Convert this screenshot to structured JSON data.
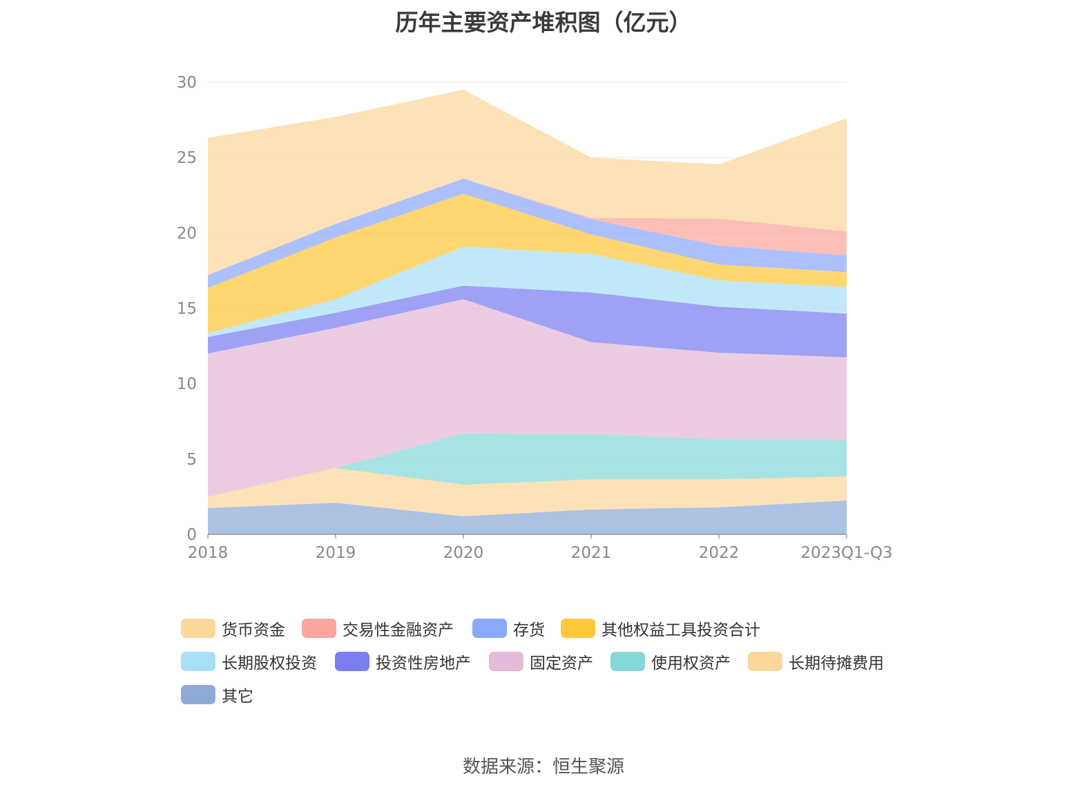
{
  "chart_data": {
    "type": "area",
    "stacked": true,
    "title": "历年主要资产堆积图（亿元）",
    "source": "数据来源：恒生聚源",
    "categories": [
      "2018",
      "2019",
      "2020",
      "2021",
      "2022",
      "2023Q1-Q3"
    ],
    "ylim": [
      0,
      30
    ],
    "yticks": [
      0,
      5,
      10,
      15,
      20,
      25,
      30
    ],
    "grid": true,
    "legend_position": "bottom",
    "series": [
      {
        "name": "其它",
        "color": "#8eabd8",
        "values": [
          1.75,
          2.1,
          1.2,
          1.65,
          1.8,
          2.25
        ]
      },
      {
        "name": "长期待摊费用",
        "color": "#fcd79c",
        "values": [
          0.75,
          2.3,
          2.1,
          2.0,
          1.85,
          1.6
        ]
      },
      {
        "name": "使用权资产",
        "color": "#86d8d8",
        "values": [
          0,
          0,
          3.4,
          3.0,
          2.65,
          2.4
        ]
      },
      {
        "name": "固定资产",
        "color": "#e5b9d8",
        "values": [
          9.5,
          9.3,
          8.9,
          6.1,
          5.75,
          5.5
        ]
      },
      {
        "name": "投资性房地产",
        "color": "#7a7ef0",
        "values": [
          1.1,
          1.0,
          0.9,
          3.3,
          3.05,
          2.9
        ]
      },
      {
        "name": "长期股权投资",
        "color": "#a9dff7",
        "values": [
          0.25,
          0.9,
          2.6,
          2.55,
          1.75,
          1.75
        ]
      },
      {
        "name": "其他权益工具投资合计",
        "color": "#ffc83a",
        "values": [
          3.0,
          4.1,
          3.5,
          1.3,
          1.05,
          1.0
        ]
      },
      {
        "name": "存货",
        "color": "#8aa8fc",
        "values": [
          0.85,
          0.9,
          1.0,
          1.0,
          1.25,
          1.1
        ]
      },
      {
        "name": "交易性金融资产",
        "color": "#f9a69d",
        "values": [
          0,
          0,
          0,
          0.1,
          1.8,
          1.6
        ]
      },
      {
        "name": "货币资金",
        "color": "#fcd79c",
        "values": [
          9.1,
          7.1,
          5.9,
          4.0,
          3.6,
          7.5
        ]
      }
    ]
  },
  "legend": [
    {
      "label": "货币资金",
      "color": "#fcd79c"
    },
    {
      "label": "交易性金融资产",
      "color": "#f9a69d"
    },
    {
      "label": "存货",
      "color": "#8aa8fc"
    },
    {
      "label": "其他权益工具投资合计",
      "color": "#ffc83a"
    },
    {
      "label": "长期股权投资",
      "color": "#a9dff7"
    },
    {
      "label": "投资性房地产",
      "color": "#7a7ef0"
    },
    {
      "label": "固定资产",
      "color": "#e5b9d8"
    },
    {
      "label": "使用权资产",
      "color": "#86d8d8"
    },
    {
      "label": "长期待摊费用",
      "color": "#fcd79c"
    },
    {
      "label": "其它",
      "color": "#8eabd8"
    }
  ]
}
